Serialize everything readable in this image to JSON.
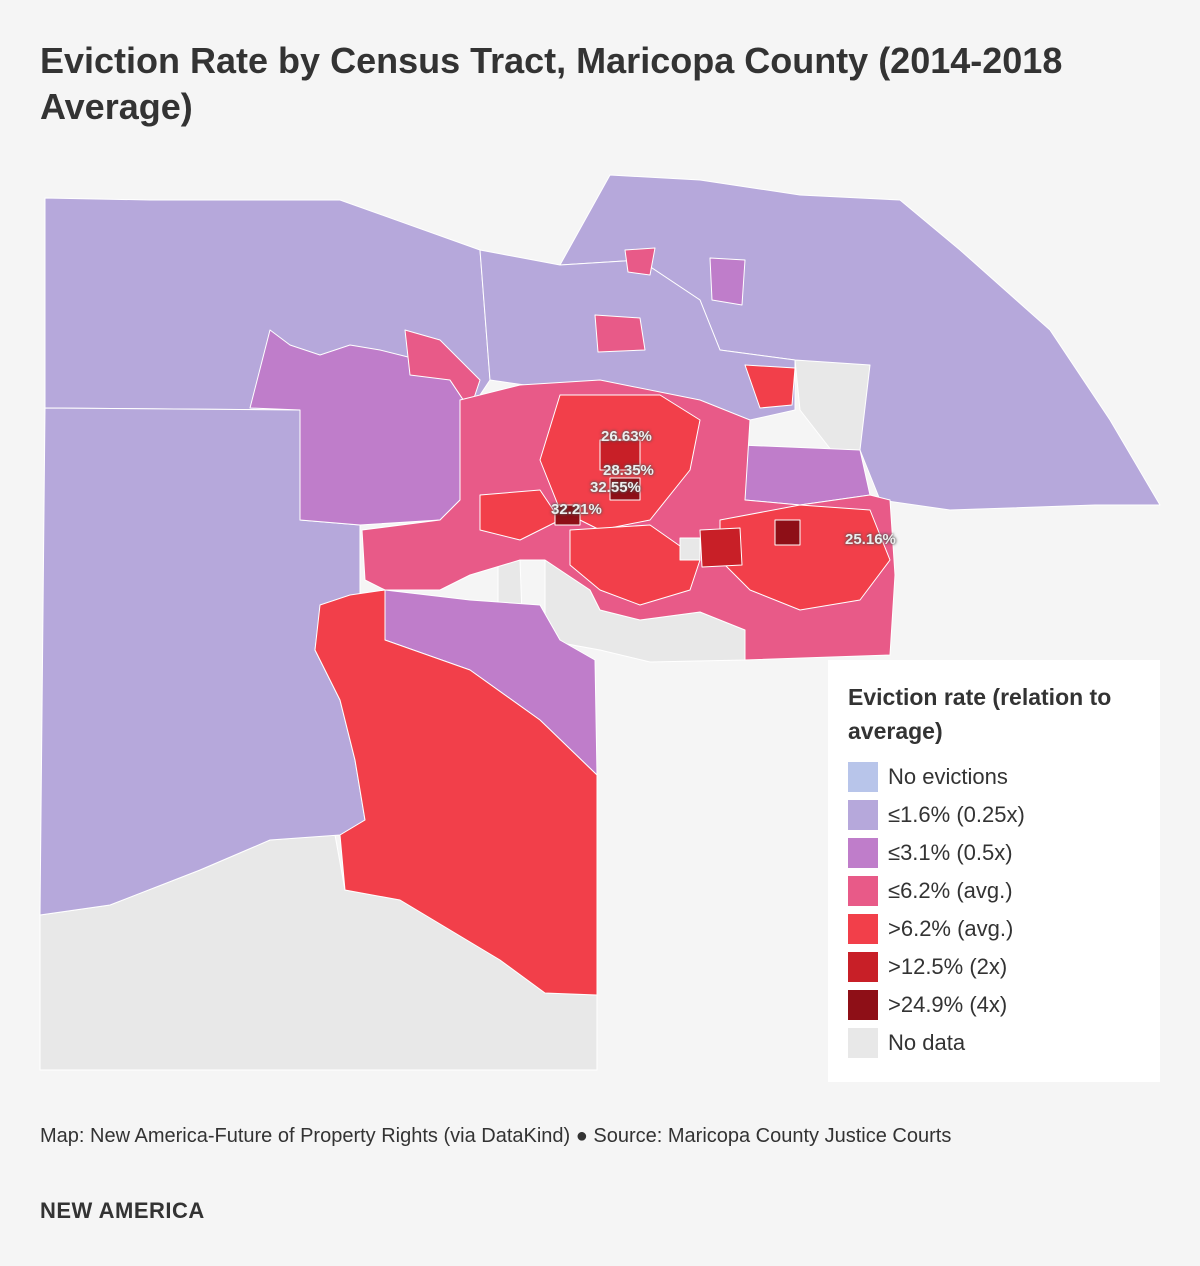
{
  "title": "Eviction Rate by Census Tract, Maricopa County (2014-2018 Average)",
  "colors": {
    "no_evictions": "#b8c5ea",
    "le_1_6": "#b6a8db",
    "le_3_1": "#bf7dca",
    "le_6_2": "#e85a88",
    "gt_6_2": "#f23f4a",
    "gt_12_5": "#c81f27",
    "gt_24_9": "#8e0f17",
    "no_data": "#e8e8e8"
  },
  "map_labels": [
    {
      "id": "a",
      "text": "26.63%"
    },
    {
      "id": "b",
      "text": "28.35%"
    },
    {
      "id": "c",
      "text": "32.55%"
    },
    {
      "id": "d",
      "text": "32.21%"
    },
    {
      "id": "e",
      "text": "25.16%"
    }
  ],
  "legend": {
    "title": "Eviction rate (relation to average)",
    "items": [
      {
        "label": "No evictions",
        "color": "#b8c5ea"
      },
      {
        "label": "≤1.6% (0.25x)",
        "color": "#b6a8db"
      },
      {
        "label": "≤3.1% (0.5x)",
        "color": "#bf7dca"
      },
      {
        "label": "≤6.2% (avg.)",
        "color": "#e85a88"
      },
      {
        "label": ">6.2% (avg.)",
        "color": "#f23f4a"
      },
      {
        "label": ">12.5% (2x)",
        "color": "#c81f27"
      },
      {
        "label": ">24.9% (4x)",
        "color": "#8e0f17"
      },
      {
        "label": "No data",
        "color": "#e8e8e8"
      }
    ]
  },
  "footer": {
    "source": "Map: New America-Future of Property Rights (via DataKind) ● Source: Maricopa County Justice Courts",
    "brand": "NEW AMERICA"
  }
}
